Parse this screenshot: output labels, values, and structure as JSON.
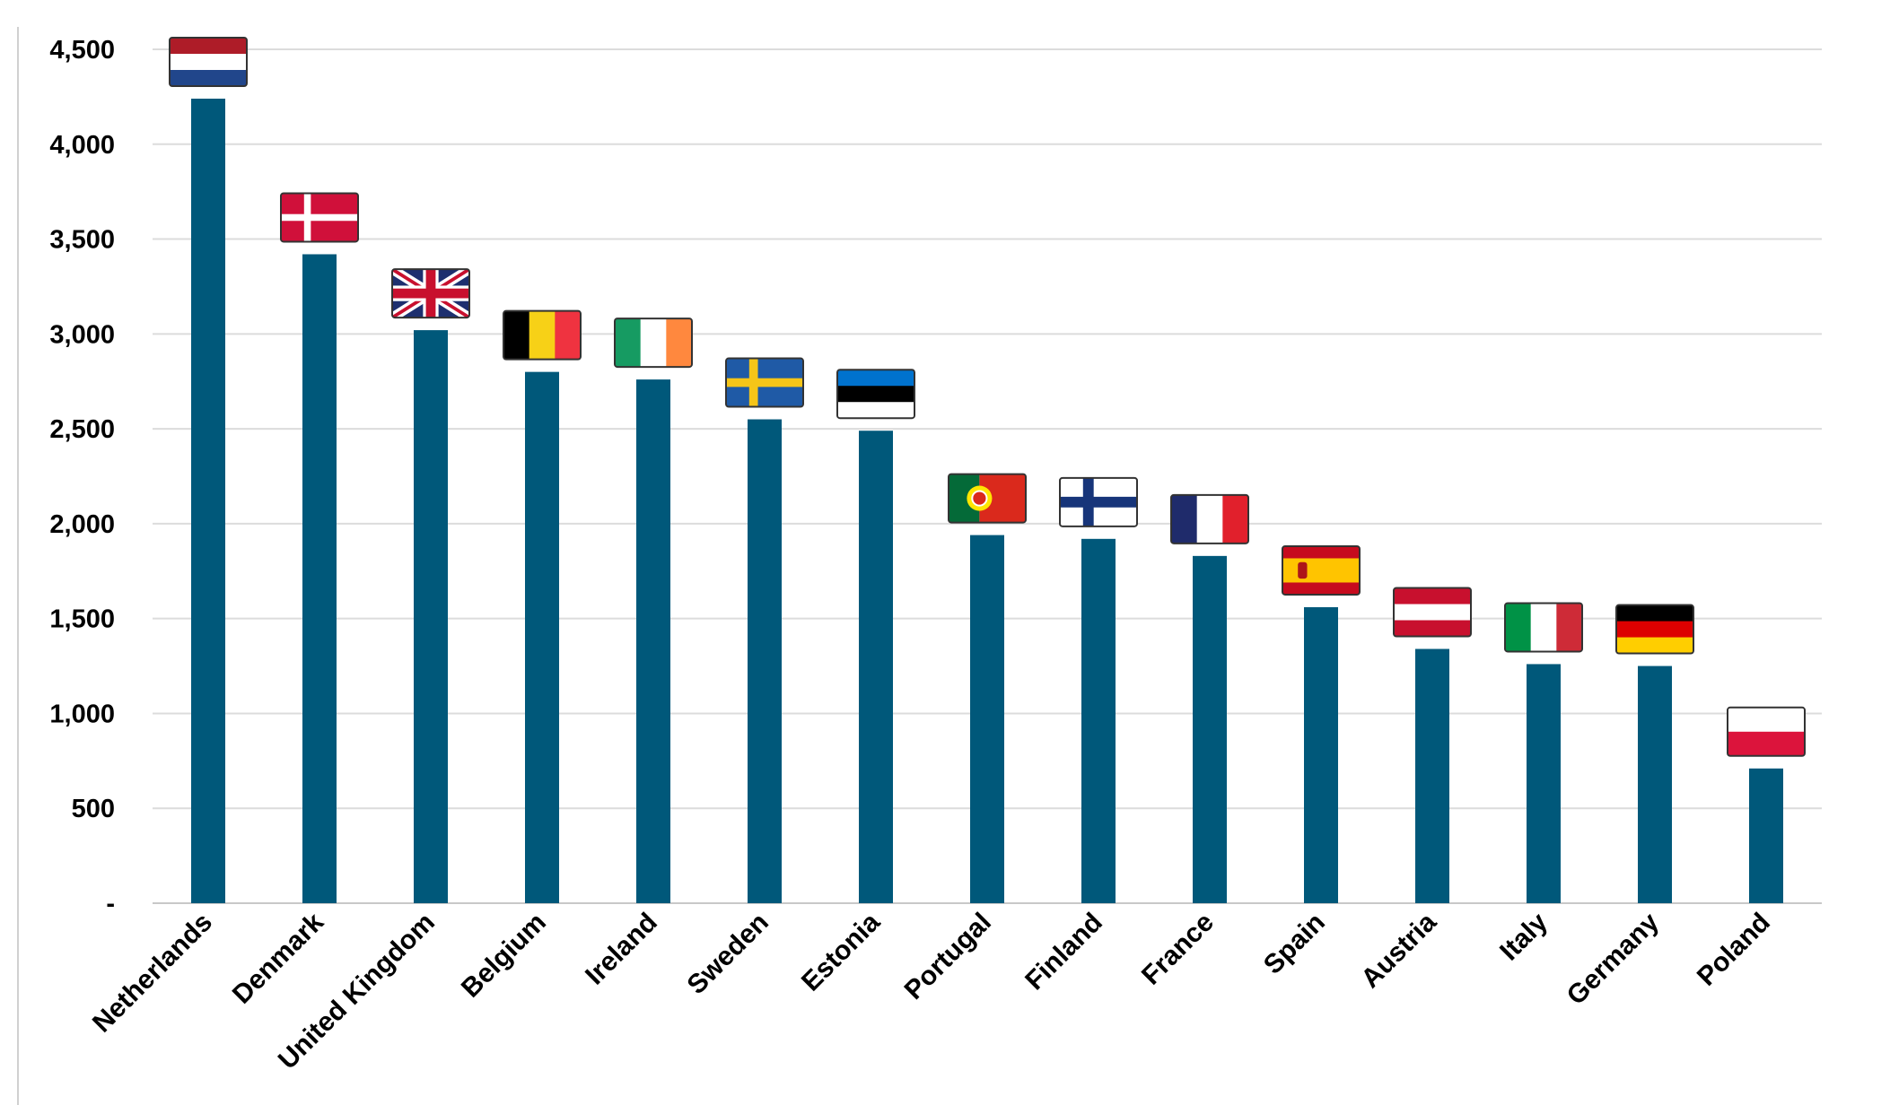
{
  "chart_data": {
    "type": "bar",
    "title": "",
    "xlabel": "",
    "ylabel": "",
    "ylim": [
      0,
      4500
    ],
    "grid": true,
    "yticks": [
      {
        "value": 0,
        "label": "-"
      },
      {
        "value": 500,
        "label": "500"
      },
      {
        "value": 1000,
        "label": "1,000"
      },
      {
        "value": 1500,
        "label": "1,500"
      },
      {
        "value": 2000,
        "label": "2,000"
      },
      {
        "value": 2500,
        "label": "2,500"
      },
      {
        "value": 3000,
        "label": "3,000"
      },
      {
        "value": 3500,
        "label": "3,500"
      },
      {
        "value": 4000,
        "label": "4,000"
      },
      {
        "value": 4500,
        "label": "4,500"
      }
    ],
    "categories": [
      "Netherlands",
      "Denmark",
      "United Kingdom",
      "Belgium",
      "Ireland",
      "Sweden",
      "Estonia",
      "Portugal",
      "Finland",
      "France",
      "Spain",
      "Austria",
      "Italy",
      "Germany",
      "Poland"
    ],
    "values": [
      4240,
      3420,
      3020,
      2800,
      2760,
      2550,
      2490,
      1940,
      1920,
      1830,
      1560,
      1340,
      1260,
      1250,
      710
    ],
    "bar_color": "#00587A",
    "flags": [
      "netherlands-flag-icon",
      "denmark-flag-icon",
      "united-kingdom-flag-icon",
      "belgium-flag-icon",
      "ireland-flag-icon",
      "sweden-flag-icon",
      "estonia-flag-icon",
      "portugal-flag-icon",
      "finland-flag-icon",
      "france-flag-icon",
      "spain-flag-icon",
      "austria-flag-icon",
      "italy-flag-icon",
      "germany-flag-icon",
      "poland-flag-icon"
    ]
  }
}
